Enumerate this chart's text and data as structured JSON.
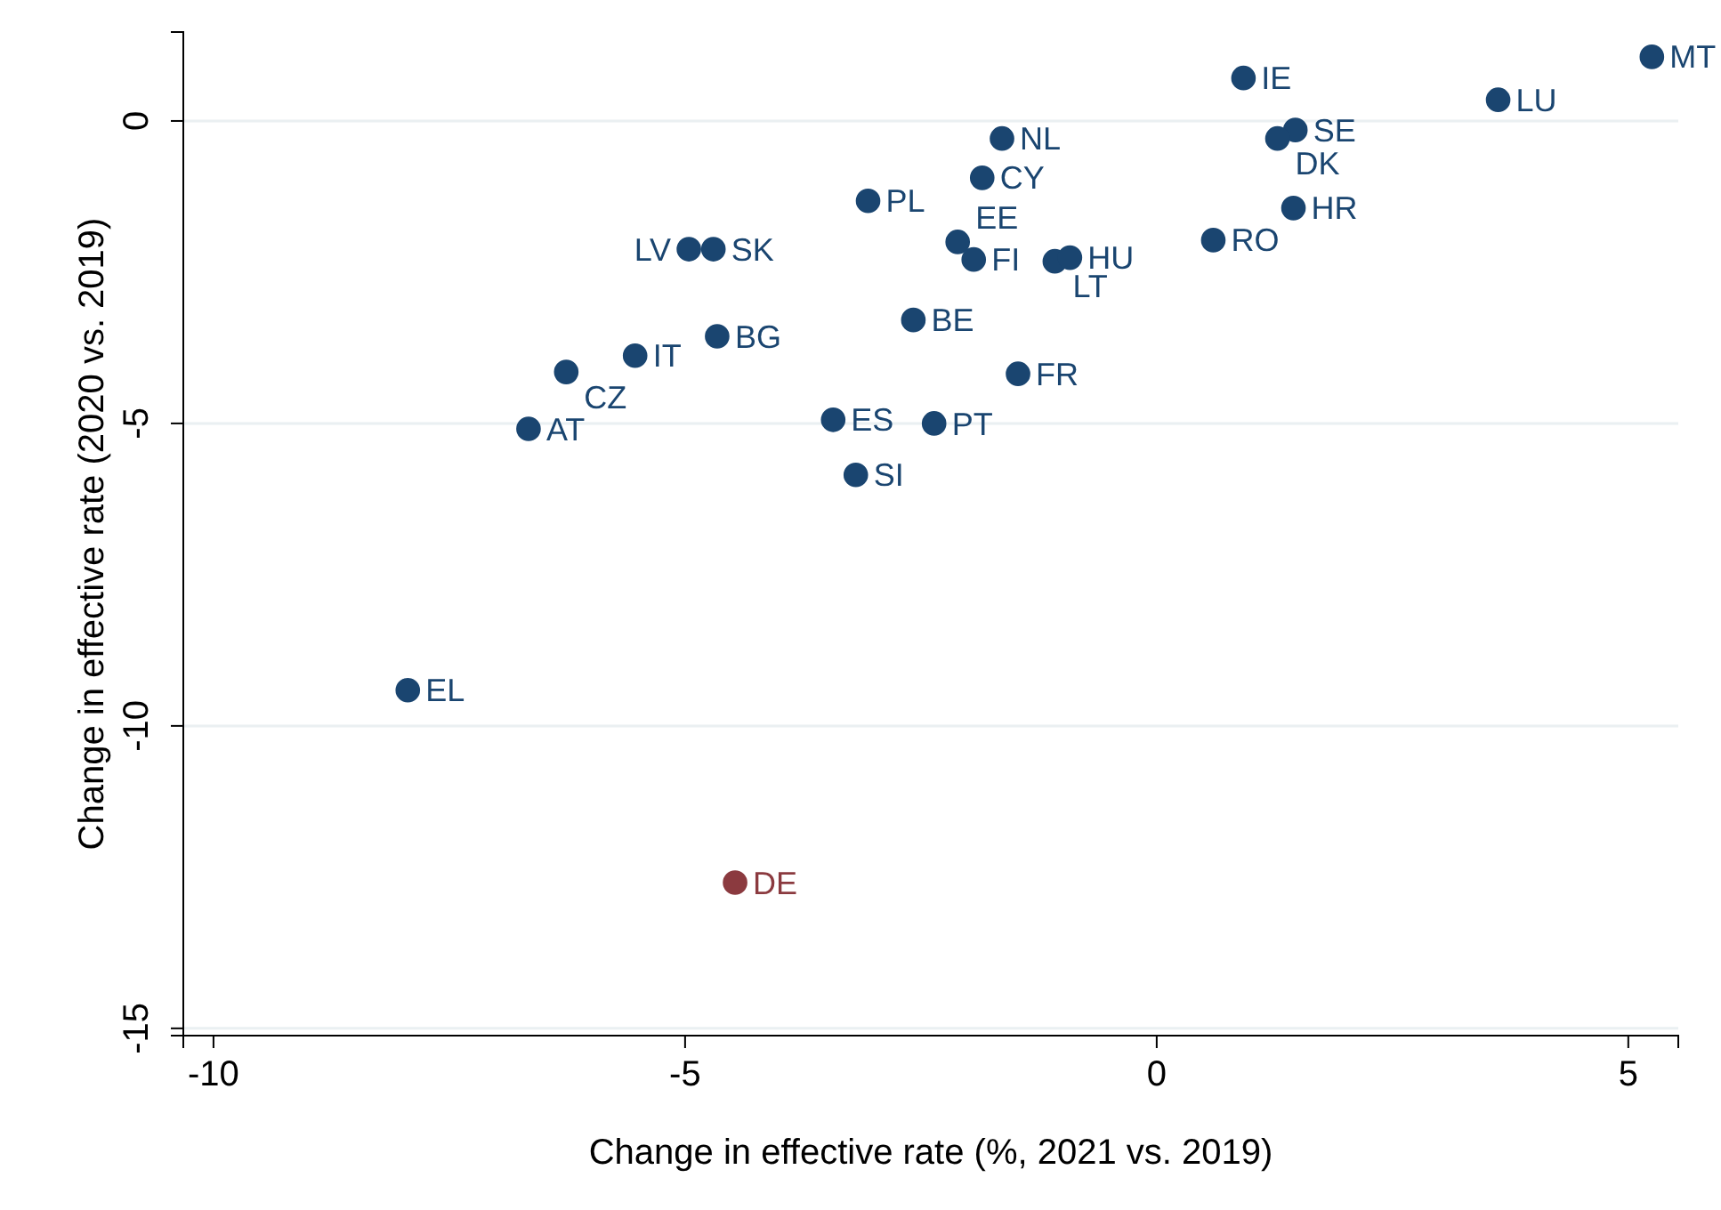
{
  "chart_data": {
    "type": "scatter",
    "xlabel": "Change in effective rate (%, 2021 vs. 2019)",
    "ylabel": "Change in effective rate (2020 vs. 2019)",
    "xlim": [
      -10.32,
      5.53
    ],
    "ylim": [
      -15.12,
      1.47
    ],
    "xticks": [
      -10,
      -5,
      0,
      5
    ],
    "yticks": [
      -15,
      -10,
      -5,
      0
    ],
    "grid": "y",
    "marker": "circle",
    "x": [
      5.25,
      0.92,
      3.62,
      1.47,
      1.28,
      -1.64,
      -1.85,
      -3.06,
      1.45,
      0.6,
      -2.11,
      -1.94,
      -1.08,
      -0.92,
      -4.96,
      -4.7,
      -2.58,
      -4.66,
      -5.53,
      -6.26,
      -1.47,
      -6.66,
      -3.43,
      -2.36,
      -3.19,
      -7.94,
      -4.47
    ],
    "values": [
      1.06,
      0.71,
      0.35,
      -0.15,
      -0.29,
      -0.29,
      -0.94,
      -1.32,
      -1.44,
      -1.97,
      -2.0,
      -2.29,
      -2.32,
      -2.26,
      -2.12,
      -2.12,
      -3.29,
      -3.56,
      -3.88,
      -4.15,
      -4.18,
      -5.09,
      -4.94,
      -5.0,
      -5.85,
      -9.41,
      -12.59
    ],
    "colors": [
      "#1a4570",
      "#1a4570",
      "#1a4570",
      "#1a4570",
      "#1a4570",
      "#1a4570",
      "#1a4570",
      "#1a4570",
      "#1a4570",
      "#1a4570",
      "#1a4570",
      "#1a4570",
      "#1a4570",
      "#1a4570",
      "#1a4570",
      "#1a4570",
      "#1a4570",
      "#1a4570",
      "#1a4570",
      "#1a4570",
      "#1a4570",
      "#1a4570",
      "#1a4570",
      "#1a4570",
      "#1a4570",
      "#1a4570",
      "#8b3a3f"
    ],
    "annotations": [
      {
        "text": "MT",
        "x": 5.25,
        "y": 1.06
      },
      {
        "text": "IE",
        "x": 0.92,
        "y": 0.71
      },
      {
        "text": "LU",
        "x": 3.62,
        "y": 0.35
      },
      {
        "text": "SE",
        "x": 1.47,
        "y": -0.15
      },
      {
        "text": "DK",
        "x": 1.28,
        "y": -0.29
      },
      {
        "text": "NL",
        "x": -1.64,
        "y": -0.29
      },
      {
        "text": "CY",
        "x": -1.85,
        "y": -0.94
      },
      {
        "text": "PL",
        "x": -3.06,
        "y": -1.32
      },
      {
        "text": "HR",
        "x": 1.45,
        "y": -1.44
      },
      {
        "text": "RO",
        "x": 0.6,
        "y": -1.97
      },
      {
        "text": "EE",
        "x": -2.11,
        "y": -2.0
      },
      {
        "text": "FI",
        "x": -1.94,
        "y": -2.29
      },
      {
        "text": "LT",
        "x": -1.08,
        "y": -2.32
      },
      {
        "text": "HU",
        "x": -0.92,
        "y": -2.26
      },
      {
        "text": "LV",
        "x": -4.96,
        "y": -2.12
      },
      {
        "text": "SK",
        "x": -4.7,
        "y": -2.12
      },
      {
        "text": "BE",
        "x": -2.58,
        "y": -3.29
      },
      {
        "text": "BG",
        "x": -4.66,
        "y": -3.56
      },
      {
        "text": "IT",
        "x": -5.53,
        "y": -3.88
      },
      {
        "text": "CZ",
        "x": -6.26,
        "y": -4.15
      },
      {
        "text": "FR",
        "x": -1.47,
        "y": -4.18
      },
      {
        "text": "AT",
        "x": -6.66,
        "y": -5.09
      },
      {
        "text": "ES",
        "x": -3.43,
        "y": -4.94
      },
      {
        "text": "PT",
        "x": -2.36,
        "y": -5.0
      },
      {
        "text": "SI",
        "x": -3.19,
        "y": -5.85
      },
      {
        "text": "EL",
        "x": -7.94,
        "y": -9.41
      },
      {
        "text": "DE",
        "x": -4.47,
        "y": -12.59
      }
    ]
  }
}
